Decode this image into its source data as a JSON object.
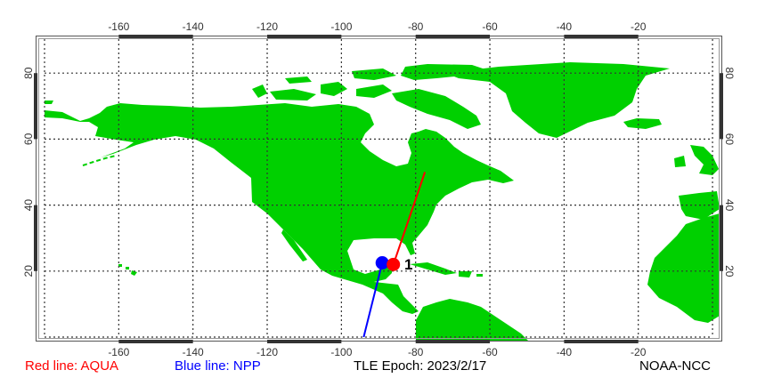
{
  "map": {
    "projection": "equirectangular",
    "lon_range": [
      -180,
      0
    ],
    "lat_range": [
      0,
      90
    ],
    "lon_ticks": [
      -160,
      -140,
      -120,
      -100,
      -80,
      -60,
      -40,
      -20
    ],
    "lat_ticks": [
      20,
      40,
      60,
      80
    ],
    "land_color": "#00d000",
    "ocean_color": "#ffffff",
    "grid": "dotted"
  },
  "satellites": [
    {
      "name": "AQUA",
      "color": "#ff0000",
      "position": {
        "lon": -86,
        "lat": 22
      },
      "track": [
        {
          "lon": -77.5,
          "lat": 50
        },
        {
          "lon": -86,
          "lat": 22
        }
      ]
    },
    {
      "name": "NPP",
      "color": "#0000ff",
      "position": {
        "lon": -89,
        "lat": 22.5
      },
      "track": [
        {
          "lon": -89,
          "lat": 22.5
        },
        {
          "lon": -94,
          "lat": 0
        }
      ]
    }
  ],
  "pass_label": "1",
  "legend": {
    "red_line": "Red line: AQUA",
    "blue_line": "Blue line: NPP",
    "epoch": "TLE Epoch: 2023/2/17",
    "source": "NOAA-NCC"
  }
}
